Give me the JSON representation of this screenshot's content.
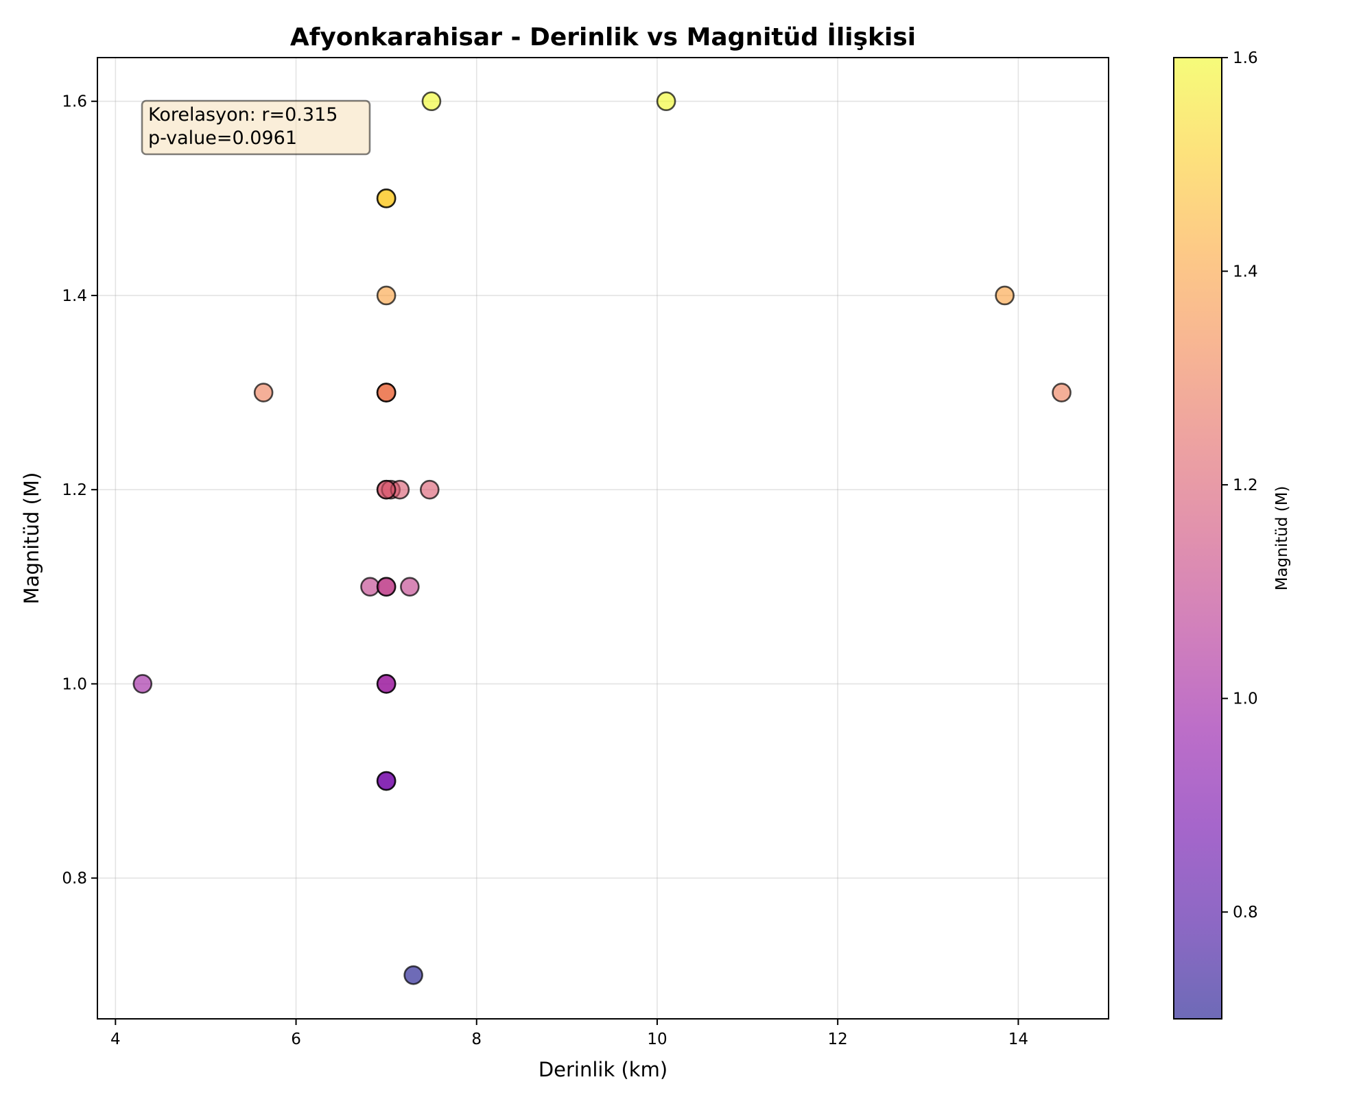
{
  "chart_data": {
    "type": "scatter",
    "title": "Afyonkarahisar - Derinlik vs Magnitüd İlişkisi",
    "xlabel": "Derinlik (km)",
    "ylabel": "Magnitüd (M)",
    "xlim": [
      3.8,
      15.0
    ],
    "ylim": [
      0.655,
      1.645
    ],
    "xticks": [
      4,
      6,
      8,
      10,
      12,
      14
    ],
    "xtick_labels": [
      "4",
      "6",
      "8",
      "10",
      "12",
      "14"
    ],
    "yticks": [
      0.8,
      1.0,
      1.2,
      1.4,
      1.6
    ],
    "ytick_labels": [
      "0.8",
      "1.0",
      "1.2",
      "1.4",
      "1.6"
    ],
    "grid": true,
    "annotation": {
      "lines": [
        "Korelasyon: r=0.315",
        "p-value=0.0961"
      ],
      "placement": "top-left"
    },
    "colorbar": {
      "label": "Magnitüd (M)",
      "colormap": "plasma",
      "alpha": 0.6,
      "range": [
        0.7,
        1.6
      ],
      "ticks": [
        0.8,
        1.0,
        1.2,
        1.4,
        1.6
      ],
      "tick_labels": [
        "0.8",
        "1.0",
        "1.2",
        "1.4",
        "1.6"
      ]
    },
    "points": [
      {
        "x": 7.5,
        "y": 1.6
      },
      {
        "x": 10.1,
        "y": 1.6
      },
      {
        "x": 7.0,
        "y": 1.5
      },
      {
        "x": 7.0,
        "y": 1.5
      },
      {
        "x": 7.0,
        "y": 1.4
      },
      {
        "x": 13.85,
        "y": 1.4
      },
      {
        "x": 5.64,
        "y": 1.3
      },
      {
        "x": 7.0,
        "y": 1.3
      },
      {
        "x": 7.0,
        "y": 1.3
      },
      {
        "x": 7.0,
        "y": 1.3
      },
      {
        "x": 14.48,
        "y": 1.3
      },
      {
        "x": 7.0,
        "y": 1.2
      },
      {
        "x": 7.05,
        "y": 1.2
      },
      {
        "x": 7.15,
        "y": 1.2
      },
      {
        "x": 7.48,
        "y": 1.2
      },
      {
        "x": 7.0,
        "y": 1.2
      },
      {
        "x": 6.82,
        "y": 1.1
      },
      {
        "x": 7.0,
        "y": 1.1
      },
      {
        "x": 7.0,
        "y": 1.1
      },
      {
        "x": 7.26,
        "y": 1.1
      },
      {
        "x": 4.3,
        "y": 1.0
      },
      {
        "x": 7.0,
        "y": 1.0
      },
      {
        "x": 7.0,
        "y": 1.0
      },
      {
        "x": 7.0,
        "y": 0.9
      },
      {
        "x": 7.0,
        "y": 0.9
      },
      {
        "x": 7.3,
        "y": 0.7
      }
    ]
  }
}
